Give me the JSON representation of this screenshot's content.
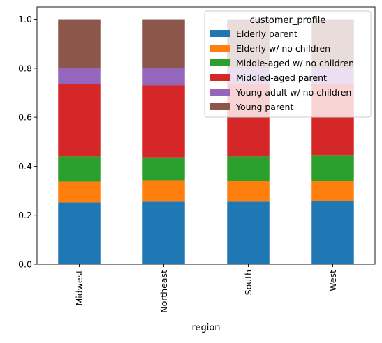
{
  "chart_data": {
    "type": "bar",
    "stacked": true,
    "xlabel": "region",
    "ylabel": "",
    "ylim": [
      0,
      1.05
    ],
    "yticks": [
      "0.0",
      "0.2",
      "0.4",
      "0.6",
      "0.8",
      "1.0"
    ],
    "categories": [
      "Midwest",
      "Northeast",
      "South",
      "West"
    ],
    "legend": {
      "title": "customer_profile",
      "placement": "top-right"
    },
    "series": [
      {
        "name": "Elderly parent",
        "color": "#1f77b4",
        "values": [
          0.252,
          0.255,
          0.255,
          0.258
        ]
      },
      {
        "name": "Elderly w/ no children",
        "color": "#ff7f0e",
        "values": [
          0.085,
          0.088,
          0.085,
          0.082
        ]
      },
      {
        "name": "Middle-aged w/ no children",
        "color": "#2ca02c",
        "values": [
          0.103,
          0.093,
          0.1,
          0.103
        ]
      },
      {
        "name": "Middled-aged parent",
        "color": "#d62728",
        "values": [
          0.295,
          0.295,
          0.295,
          0.292
        ]
      },
      {
        "name": "Young adult w/ no children",
        "color": "#9467bd",
        "values": [
          0.065,
          0.069,
          0.065,
          0.065
        ]
      },
      {
        "name": "Young parent",
        "color": "#8c564b",
        "values": [
          0.2,
          0.2,
          0.2,
          0.2
        ]
      }
    ]
  }
}
